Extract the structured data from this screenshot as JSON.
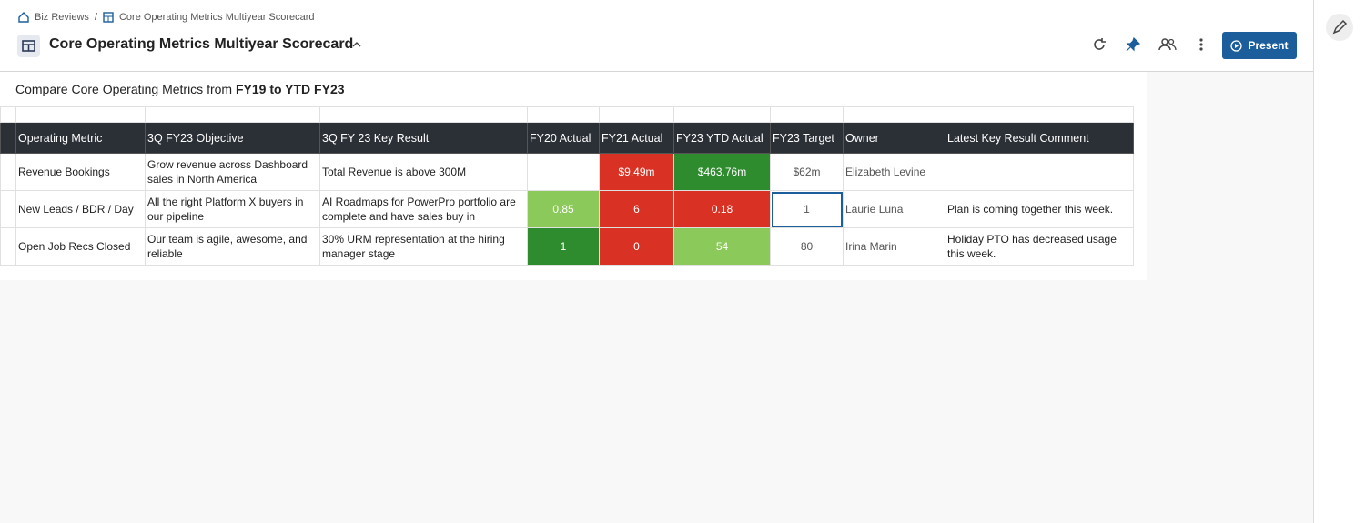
{
  "breadcrumb": [
    "Biz Reviews",
    "/",
    "Core Operating Metrics Multiyear Scorecard"
  ],
  "header": {
    "title": "Core Operating Metrics Multiyear Scorecard",
    "actions": [
      "Present"
    ]
  },
  "subtitle": [
    "Compare Core Operating Metrics from ",
    "FY19 to YTD FY23"
  ],
  "table": {
    "columns": [
      "Operating Metric",
      "3Q FY23 Objective",
      "3Q FY 23 Key Result",
      "FY20 Actual",
      "FY21 Actual",
      "FY23 YTD Actual",
      "FY23 Target",
      "Owner",
      "Latest Key Result Comment"
    ],
    "rows": [
      [
        "Revenue Bookings",
        "Grow revenue across Dashboard sales in North America",
        "Total Revenue is above 300M",
        null,
        "$9.49m",
        "$463.76m",
        "$62m",
        "Elizabeth Levine",
        null
      ],
      [
        "New Leads / BDR / Day",
        "All the right Platform X buyers in our pipeline",
        "AI Roadmaps for PowerPro portfolio are complete and have sales buy in",
        "0.85",
        "6",
        "0.18",
        "1",
        "Laurie Luna",
        "Plan is coming together this week."
      ],
      [
        "Open Job Recs Closed",
        "Our team is agile, awesome, and reliable",
        "30% URM representation at the hiring manager stage",
        "1",
        "0",
        "54",
        "80",
        "Irina Marin",
        "Holiday PTO has decreased usage this week."
      ]
    ]
  }
}
